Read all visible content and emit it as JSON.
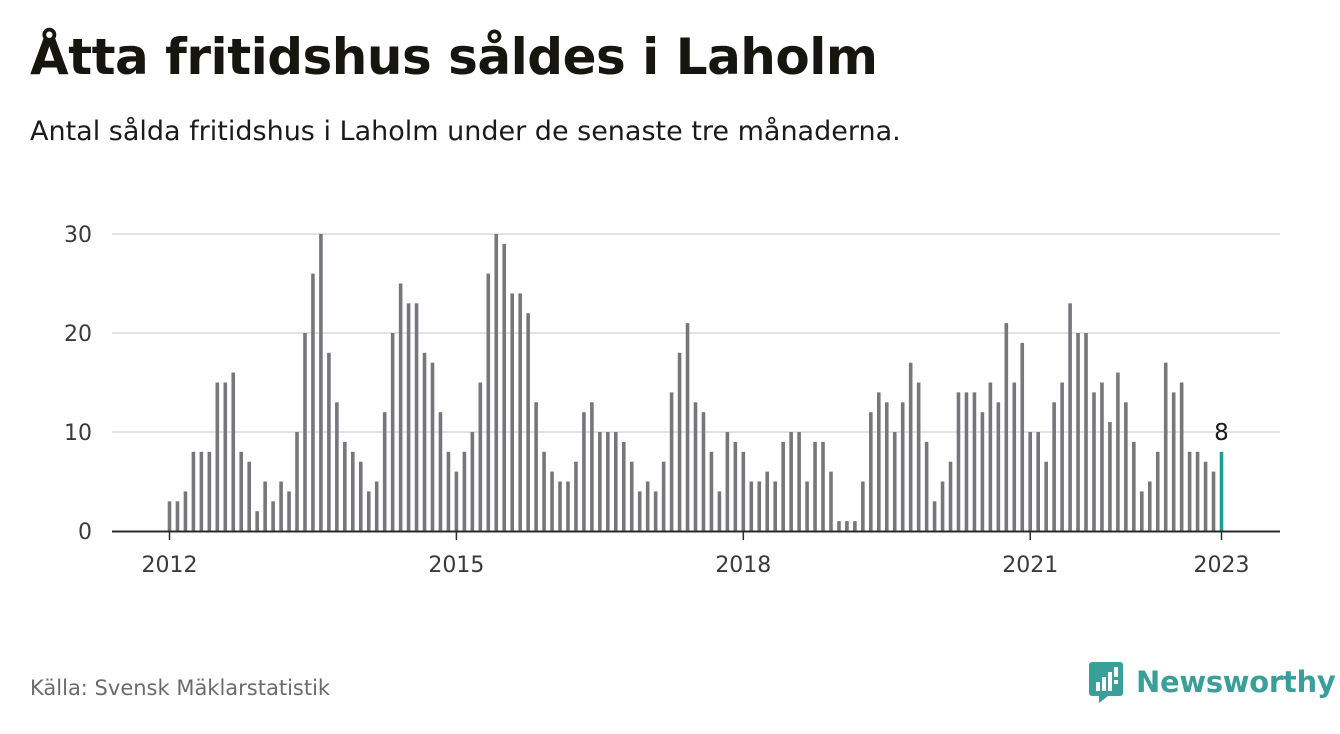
{
  "title": "Åtta fritidshus såldes i Laholm",
  "subtitle": "Antal sålda fritidshus i Laholm under de senaste tre månaderna.",
  "source": "Källa: Svensk Mäklarstatistik",
  "brand": "Newsworthy",
  "colors": {
    "bar": "#77767b",
    "highlight": "#1a9e96",
    "grid": "#d9d9d9",
    "axis": "#2b2b2b",
    "brand": "#3a9e99"
  },
  "chart_data": {
    "type": "bar",
    "x_start": "2012-01",
    "x_end": "2023-01",
    "x_unit": "month",
    "xtick_labels": [
      "2012",
      "2015",
      "2018",
      "2021",
      "2023"
    ],
    "ytick_labels": [
      "0",
      "10",
      "20",
      "30"
    ],
    "ylim": [
      0,
      30
    ],
    "grid": true,
    "values": [
      3,
      3,
      4,
      8,
      8,
      8,
      15,
      15,
      16,
      8,
      7,
      2,
      5,
      3,
      5,
      4,
      10,
      20,
      26,
      30,
      18,
      13,
      9,
      8,
      7,
      4,
      5,
      12,
      20,
      25,
      23,
      23,
      18,
      17,
      12,
      8,
      6,
      8,
      10,
      15,
      26,
      30,
      29,
      24,
      24,
      22,
      13,
      8,
      6,
      5,
      5,
      7,
      12,
      13,
      10,
      10,
      10,
      9,
      7,
      4,
      5,
      4,
      7,
      14,
      18,
      21,
      13,
      12,
      8,
      4,
      10,
      9,
      8,
      5,
      5,
      6,
      5,
      9,
      10,
      10,
      5,
      9,
      9,
      6,
      1,
      1,
      1,
      5,
      12,
      14,
      13,
      10,
      13,
      17,
      15,
      9,
      3,
      5,
      7,
      14,
      14,
      14,
      12,
      15,
      13,
      21,
      15,
      19,
      10,
      10,
      7,
      13,
      15,
      23,
      20,
      20,
      14,
      15,
      11,
      16,
      13,
      9,
      4,
      5,
      8,
      17,
      14,
      15,
      8,
      8,
      7,
      6,
      8
    ],
    "highlight_label": "8"
  }
}
